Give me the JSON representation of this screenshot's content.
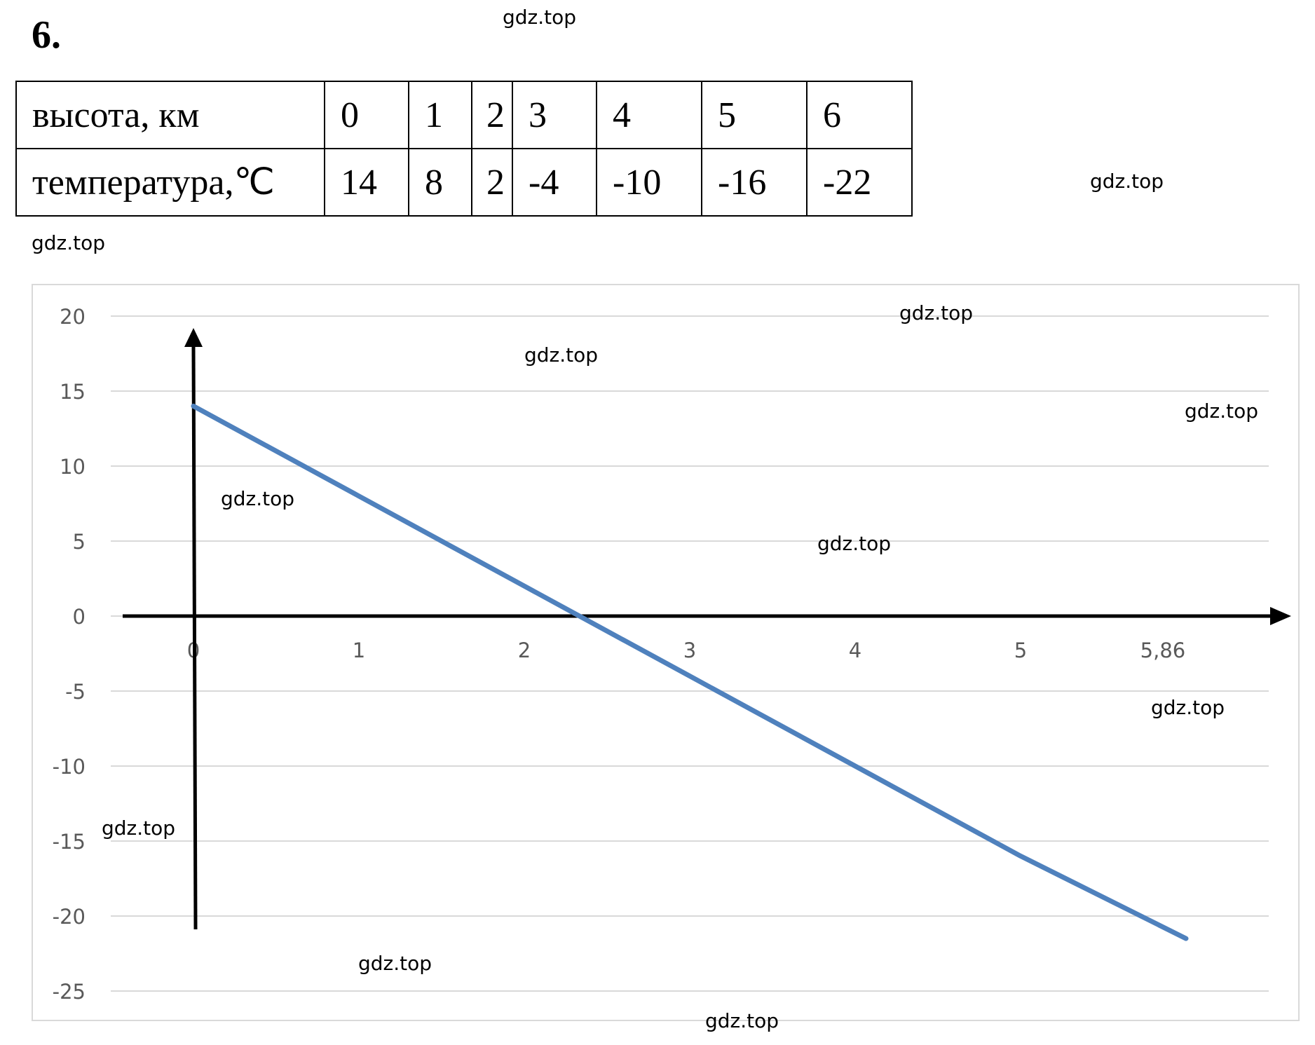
{
  "task_number": "6.",
  "watermark": "gdz.top",
  "table": {
    "rows": [
      {
        "label": "высота, км",
        "cells": [
          "0",
          "1",
          "2",
          "3",
          "4",
          "5",
          "6"
        ]
      },
      {
        "label": "температура,℃",
        "cells": [
          "14",
          "8",
          "2",
          "-4",
          "-10",
          "-16",
          "-22"
        ]
      }
    ]
  },
  "chart_data": {
    "type": "line",
    "title": "",
    "xlabel": "",
    "ylabel": "",
    "x_tick_labels": [
      "0",
      "1",
      "2",
      "3",
      "4",
      "5",
      "5,86"
    ],
    "x_ticks": [
      0,
      1,
      2,
      3,
      4,
      5,
      5.86
    ],
    "yticks": [
      20,
      15,
      10,
      5,
      0,
      -5,
      -10,
      -15,
      -20,
      -25
    ],
    "ylim": [
      -25,
      20
    ],
    "grid": true,
    "legend": "none",
    "line_color": "#4f81bd",
    "axis_color": "#000000",
    "series": [
      {
        "x": [
          0,
          1,
          2,
          3,
          4,
          5,
          6
        ],
        "y": [
          14,
          8,
          2,
          -4,
          -10,
          -16,
          -21.5
        ]
      }
    ]
  }
}
